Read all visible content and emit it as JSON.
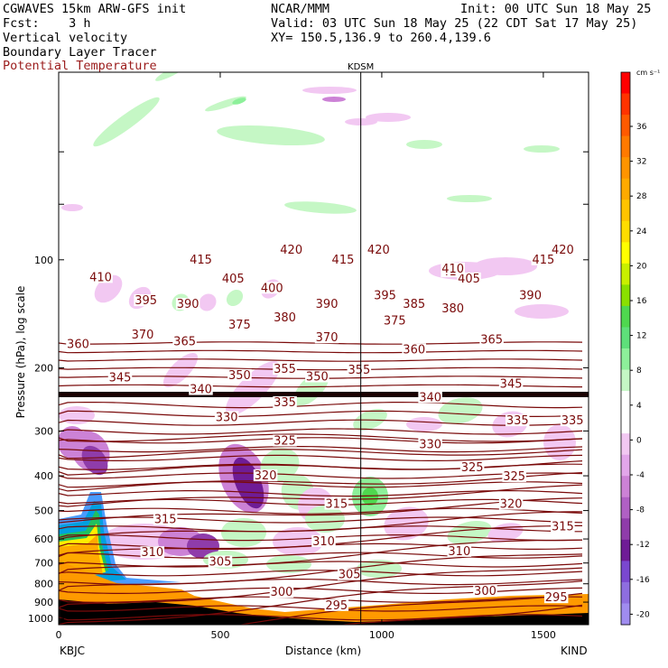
{
  "header": {
    "model": "CGWAVES 15km ARW-GFS init",
    "org": "NCAR/MMM",
    "init": "Init: 00 UTC Sun 18 May 25",
    "fcst": "Fcst:    3 h",
    "valid": "Valid: 03 UTC Sun 18 May 25 (22 CDT Sat 17 May 25)",
    "field1": "Vertical velocity",
    "field2": "Boundary Layer Tracer",
    "field3": "Potential Temperature",
    "xy": "XY= 150.5,136.9 to 260.4,139.6"
  },
  "colors": {
    "theta": "#7a0a0a",
    "field3_text": "#9b1c1c",
    "tropopause": "#1a0000",
    "terrain": "#000000"
  },
  "chart_data": {
    "type": "contour-cross-section",
    "ylabel": "Pressure (hPa), log scale",
    "xlabel": "Distance (km)",
    "x_ticks": [
      0,
      500,
      1000,
      1500
    ],
    "y_ticks": [
      100,
      200,
      300,
      400,
      500,
      600,
      700,
      800,
      900,
      1000
    ],
    "xlim": [
      0,
      1640
    ],
    "ylim_hpa": [
      1040,
      30
    ],
    "y_scale": "log",
    "left_station": "KBJC",
    "right_station": "KIND",
    "marker_station": "KDSM",
    "marker_distance_km": 935,
    "theta_label_values": [
      295,
      300,
      305,
      310,
      315,
      320,
      325,
      330,
      335,
      340,
      345,
      350,
      355,
      360,
      365,
      370,
      375,
      380,
      385,
      390,
      395,
      400,
      405,
      410,
      415,
      420
    ],
    "theta_labels": [
      {
        "v": "420",
        "x": 1560,
        "p": 94
      },
      {
        "v": "415",
        "x": 1500,
        "p": 100
      },
      {
        "v": "410",
        "x": 1220,
        "p": 108
      },
      {
        "v": "405",
        "x": 1270,
        "p": 113
      },
      {
        "v": "390",
        "x": 1460,
        "p": 126
      },
      {
        "v": "385",
        "x": 1100,
        "p": 133
      },
      {
        "v": "380",
        "x": 1220,
        "p": 137
      },
      {
        "v": "365",
        "x": 1340,
        "p": 167
      },
      {
        "v": "360",
        "x": 1100,
        "p": 178
      },
      {
        "v": "345",
        "x": 1400,
        "p": 222
      },
      {
        "v": "340",
        "x": 1150,
        "p": 242
      },
      {
        "v": "335",
        "x": 1420,
        "p": 281
      },
      {
        "v": "335",
        "x": 1590,
        "p": 281
      },
      {
        "v": "330",
        "x": 1150,
        "p": 327
      },
      {
        "v": "325",
        "x": 1410,
        "p": 402
      },
      {
        "v": "325",
        "x": 1280,
        "p": 380
      },
      {
        "v": "320",
        "x": 1400,
        "p": 480
      },
      {
        "v": "315",
        "x": 1560,
        "p": 555
      },
      {
        "v": "310",
        "x": 1240,
        "p": 650
      },
      {
        "v": "305",
        "x": 900,
        "p": 755
      },
      {
        "v": "300",
        "x": 1320,
        "p": 840
      },
      {
        "v": "295",
        "x": 1540,
        "p": 875
      },
      {
        "v": "420",
        "x": 720,
        "p": 94
      },
      {
        "v": "415",
        "x": 440,
        "p": 100
      },
      {
        "v": "415",
        "x": 880,
        "p": 100
      },
      {
        "v": "420",
        "x": 990,
        "p": 94
      },
      {
        "v": "410",
        "x": 1220,
        "p": 106
      },
      {
        "v": "410",
        "x": 130,
        "p": 112
      },
      {
        "v": "405",
        "x": 540,
        "p": 113
      },
      {
        "v": "400",
        "x": 660,
        "p": 120
      },
      {
        "v": "395",
        "x": 270,
        "p": 130
      },
      {
        "v": "390",
        "x": 400,
        "p": 133
      },
      {
        "v": "390",
        "x": 830,
        "p": 133
      },
      {
        "v": "395",
        "x": 1010,
        "p": 126
      },
      {
        "v": "380",
        "x": 700,
        "p": 145
      },
      {
        "v": "375",
        "x": 560,
        "p": 152
      },
      {
        "v": "370",
        "x": 260,
        "p": 162
      },
      {
        "v": "365",
        "x": 390,
        "p": 169
      },
      {
        "v": "370",
        "x": 830,
        "p": 165
      },
      {
        "v": "375",
        "x": 1040,
        "p": 148
      },
      {
        "v": "360",
        "x": 60,
        "p": 172
      },
      {
        "v": "345",
        "x": 190,
        "p": 213
      },
      {
        "v": "340",
        "x": 440,
        "p": 230
      },
      {
        "v": "350",
        "x": 560,
        "p": 210
      },
      {
        "v": "355",
        "x": 700,
        "p": 202
      },
      {
        "v": "350",
        "x": 800,
        "p": 212
      },
      {
        "v": "355",
        "x": 930,
        "p": 203
      },
      {
        "v": "335",
        "x": 700,
        "p": 250
      },
      {
        "v": "330",
        "x": 520,
        "p": 275
      },
      {
        "v": "325",
        "x": 700,
        "p": 320
      },
      {
        "v": "320",
        "x": 640,
        "p": 400
      },
      {
        "v": "315",
        "x": 860,
        "p": 480
      },
      {
        "v": "315",
        "x": 330,
        "p": 530
      },
      {
        "v": "310",
        "x": 820,
        "p": 610
      },
      {
        "v": "310",
        "x": 290,
        "p": 655
      },
      {
        "v": "305",
        "x": 500,
        "p": 695
      },
      {
        "v": "300",
        "x": 690,
        "p": 845
      },
      {
        "v": "295",
        "x": 860,
        "p": 920
      }
    ],
    "colorbar": {
      "unit": "cm s⁻¹",
      "labels": [
        "36",
        "32",
        "28",
        "24",
        "20",
        "16",
        "12",
        "8",
        "4",
        "0",
        "-4",
        "-8",
        "-12",
        "-16",
        "-20"
      ],
      "colors": [
        "#ff0000",
        "#ff3300",
        "#ff5a00",
        "#ff7a00",
        "#ff9400",
        "#ffaa00",
        "#ffc300",
        "#ffdd00",
        "#ffff00",
        "#c9f000",
        "#8ae000",
        "#4fd84f",
        "#5ee07a",
        "#8df09a",
        "#c5f7c5",
        "#ffffff",
        "#ffffff",
        "#f2c8f2",
        "#e2a6ea",
        "#cc82d6",
        "#b060c4",
        "#8f3caa",
        "#6f1c96",
        "#7a48d0",
        "#8e6ee0",
        "#a08cf0"
      ]
    }
  }
}
